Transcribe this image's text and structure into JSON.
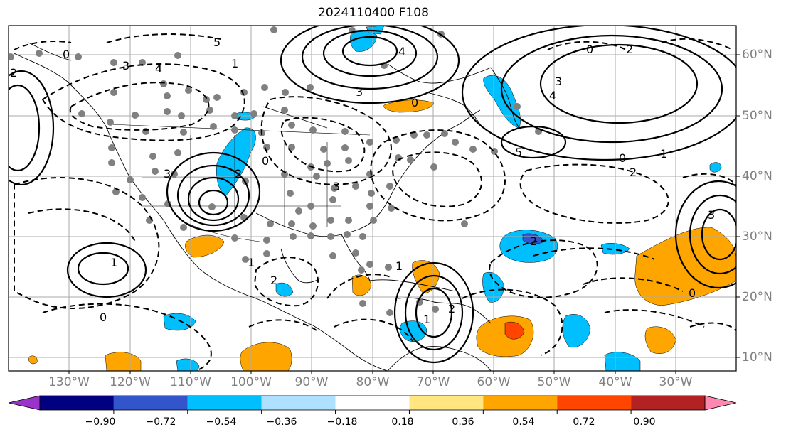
{
  "title": "2024110400 F108",
  "lon_labels": [
    "130°W",
    "120°W",
    "110°W",
    "100°W",
    "90°W",
    "80°W",
    "70°W",
    "60°W",
    "50°W",
    "40°W",
    "30°W"
  ],
  "lat_labels": [
    "60°N",
    "50°N",
    "40°N",
    "30°N",
    "20°N",
    "10°N"
  ],
  "colorbar": {
    "ticks": [
      "−0.90",
      "−0.72",
      "−0.54",
      "−0.36",
      "−0.18",
      "0.18",
      "0.36",
      "0.54",
      "0.72",
      "0.90"
    ],
    "colors": [
      "#9933cc",
      "#000080",
      "#3355cc",
      "#00bfff",
      "#aee0ff",
      "#ffffff",
      "#ffe680",
      "#ffa500",
      "#ff4500",
      "#b22222",
      "#ff88b0"
    ]
  },
  "contour_labels": [
    "0",
    "3",
    "4",
    "2",
    "5",
    "1",
    "3",
    "0",
    "2",
    "1",
    "0",
    "1",
    "2",
    "3",
    "4",
    "0",
    "3",
    "2",
    "1",
    "5",
    "0",
    "1",
    "2",
    "3",
    "4",
    "0",
    "3",
    "2",
    "0",
    "1",
    "2"
  ],
  "colors": {
    "blue_fill": "#00bfff",
    "dark_blue_fill": "#3355cc",
    "orange_fill": "#ffa500",
    "red_fill": "#ff4500",
    "grid": "#aaaaaa",
    "label_gray": "#808080"
  }
}
